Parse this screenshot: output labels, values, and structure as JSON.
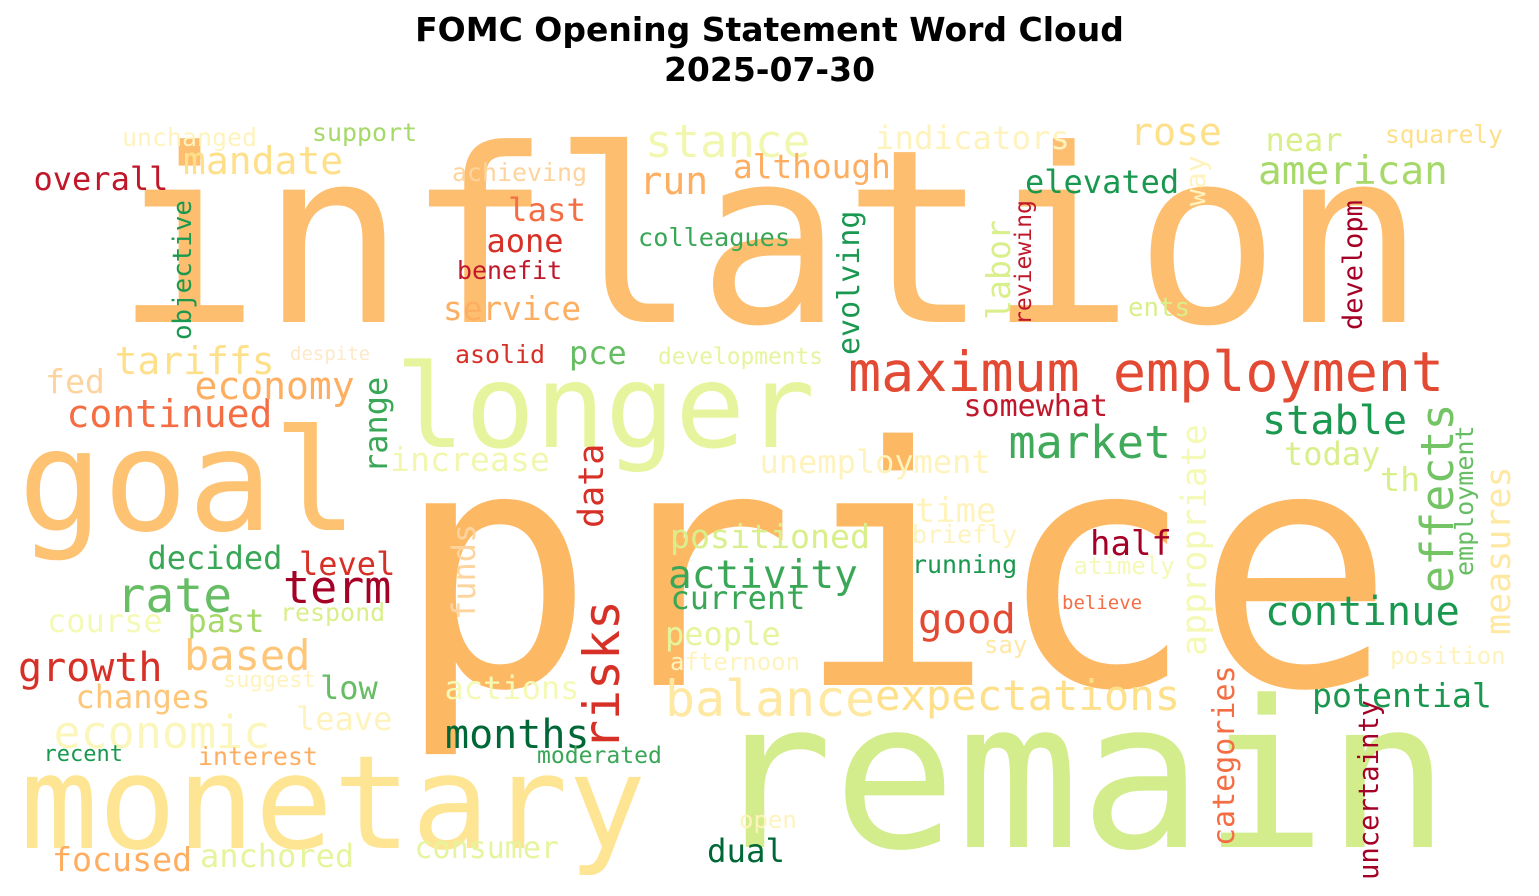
{
  "title": {
    "line1": "FOMC Opening Statement Word Cloud",
    "line2": "2025-07-30"
  },
  "palette": {
    "dark_red": "#a50026",
    "red": "#d73027",
    "orange_red": "#f46d43",
    "orange": "#fdae61",
    "light_orange": "#fee08b",
    "pale_yellow": "#ffffbf",
    "light_lime": "#d9ef8b",
    "light_green": "#a6d96a",
    "green": "#66bd63",
    "medium_green": "#1a9850",
    "dark_green": "#006837"
  },
  "words": [
    {
      "text": "inflation",
      "color": "#fdbf6f",
      "vertical": false
    },
    {
      "text": "price",
      "color": "#fdb863",
      "vertical": false
    },
    {
      "text": "remain",
      "color": "#d3ec8c",
      "vertical": false
    },
    {
      "text": "longer",
      "color": "#e6f59d",
      "vertical": false
    },
    {
      "text": "goal",
      "color": "#fdc272",
      "vertical": false
    },
    {
      "text": "monetary",
      "color": "#fee594",
      "vertical": false
    },
    {
      "text": "maximum employment",
      "color": "#e34a33",
      "vertical": false
    },
    {
      "text": "stance",
      "color": "#f2f7b0",
      "vertical": false
    },
    {
      "text": "expectations",
      "color": "#fee08b",
      "vertical": false
    },
    {
      "text": "balance",
      "color": "#fee8a2",
      "vertical": false
    },
    {
      "text": "economic",
      "color": "#fbf7bc",
      "vertical": false
    },
    {
      "text": "rate",
      "color": "#66bd63",
      "vertical": false
    },
    {
      "text": "term",
      "color": "#a50026",
      "vertical": false
    },
    {
      "text": "market",
      "color": "#3faa59",
      "vertical": false
    },
    {
      "text": "activity",
      "color": "#3aa757",
      "vertical": false
    },
    {
      "text": "risks",
      "color": "#d73027",
      "vertical": true
    },
    {
      "text": "effects",
      "color": "#74c364",
      "vertical": true
    },
    {
      "text": "appropriate",
      "color": "#f5f9b6",
      "vertical": true
    },
    {
      "text": "continue",
      "color": "#1a9850",
      "vertical": false
    },
    {
      "text": "stable",
      "color": "#1a9850",
      "vertical": false
    },
    {
      "text": "continued",
      "color": "#f46d43",
      "vertical": false
    },
    {
      "text": "tariffs",
      "color": "#fee08b",
      "vertical": false
    },
    {
      "text": "economy",
      "color": "#fdae61",
      "vertical": false
    },
    {
      "text": "growth",
      "color": "#d73027",
      "vertical": false
    },
    {
      "text": "based",
      "color": "#fdc679",
      "vertical": false
    },
    {
      "text": "months",
      "color": "#006837",
      "vertical": false
    },
    {
      "text": "good",
      "color": "#e34a33",
      "vertical": false
    },
    {
      "text": "mandate",
      "color": "#fee08b",
      "vertical": false
    },
    {
      "text": "american",
      "color": "#a6d96a",
      "vertical": false
    },
    {
      "text": "although",
      "color": "#fdae61",
      "vertical": false
    },
    {
      "text": "rose",
      "color": "#fee08b",
      "vertical": false
    },
    {
      "text": "run",
      "color": "#fdae61",
      "vertical": false
    },
    {
      "text": "indicators",
      "color": "#fff3bd",
      "vertical": false
    },
    {
      "text": "overall",
      "color": "#c0172a",
      "vertical": false
    },
    {
      "text": "last",
      "color": "#f46d43",
      "vertical": false
    },
    {
      "text": "aone",
      "color": "#d73027",
      "vertical": false
    },
    {
      "text": "service",
      "color": "#fdae61",
      "vertical": false
    },
    {
      "text": "elevated",
      "color": "#1a9850",
      "vertical": false
    },
    {
      "text": "near",
      "color": "#d9ef8b",
      "vertical": false
    },
    {
      "text": "squarely",
      "color": "#fee08b",
      "vertical": false
    },
    {
      "text": "support",
      "color": "#a6d96a",
      "vertical": false
    },
    {
      "text": "unchanged",
      "color": "#fff3bd",
      "vertical": false
    },
    {
      "text": "achieving",
      "color": "#fdd49e",
      "vertical": false
    },
    {
      "text": "benefit",
      "color": "#c0172a",
      "vertical": false
    },
    {
      "text": "colleagues",
      "color": "#3aa757",
      "vertical": false
    },
    {
      "text": "objective",
      "color": "#1a9850",
      "vertical": true
    },
    {
      "text": "evolving",
      "color": "#1a9850",
      "vertical": true
    },
    {
      "text": "labor",
      "color": "#d9ef8b",
      "vertical": true
    },
    {
      "text": "reviewing",
      "color": "#c0172a",
      "vertical": true
    },
    {
      "text": "way",
      "color": "#fff3bd",
      "vertical": true
    },
    {
      "text": "developm",
      "color": "#a50026",
      "vertical": true
    },
    {
      "text": "ents",
      "color": "#d9ef8b",
      "vertical": false
    },
    {
      "text": "despite",
      "color": "#fee8c8",
      "vertical": false
    },
    {
      "text": "asolid",
      "color": "#d73027",
      "vertical": false
    },
    {
      "text": "pce",
      "color": "#66bd63",
      "vertical": false
    },
    {
      "text": "developments",
      "color": "#e6f59d",
      "vertical": false
    },
    {
      "text": "fed",
      "color": "#fdd49e",
      "vertical": false
    },
    {
      "text": "range",
      "color": "#3aa757",
      "vertical": true
    },
    {
      "text": "somewhat",
      "color": "#c0172a",
      "vertical": false
    },
    {
      "text": "increase",
      "color": "#f2f7b0",
      "vertical": false
    },
    {
      "text": "unemployment",
      "color": "#fff3bd",
      "vertical": false
    },
    {
      "text": "today",
      "color": "#d9ef8b",
      "vertical": false
    },
    {
      "text": "th",
      "color": "#d9ef8b",
      "vertical": false
    },
    {
      "text": "measures",
      "color": "#fee8a2",
      "vertical": true
    },
    {
      "text": "employment",
      "color": "#66bd63",
      "vertical": true
    },
    {
      "text": "data",
      "color": "#d73027",
      "vertical": true
    },
    {
      "text": "time",
      "color": "#fff3bd",
      "vertical": false
    },
    {
      "text": "positioned",
      "color": "#d9ef8b",
      "vertical": false
    },
    {
      "text": "briefly",
      "color": "#fff3bd",
      "vertical": false
    },
    {
      "text": "half",
      "color": "#a50026",
      "vertical": false
    },
    {
      "text": "decided",
      "color": "#3aa757",
      "vertical": false
    },
    {
      "text": "level",
      "color": "#d73027",
      "vertical": false
    },
    {
      "text": "funds",
      "color": "#fdd49e",
      "vertical": true
    },
    {
      "text": "running",
      "color": "#1a9850",
      "vertical": false
    },
    {
      "text": "atimely",
      "color": "#f5f9b6",
      "vertical": false
    },
    {
      "text": "current",
      "color": "#3aa757",
      "vertical": false
    },
    {
      "text": "course",
      "color": "#f5f9b6",
      "vertical": false
    },
    {
      "text": "past",
      "color": "#a6d96a",
      "vertical": false
    },
    {
      "text": "respond",
      "color": "#d9ef8b",
      "vertical": false
    },
    {
      "text": "believe",
      "color": "#f46d43",
      "vertical": false
    },
    {
      "text": "people",
      "color": "#e6f59d",
      "vertical": false
    },
    {
      "text": "say",
      "color": "#fee8a2",
      "vertical": false
    },
    {
      "text": "afternoon",
      "color": "#fff3bd",
      "vertical": false
    },
    {
      "text": "position",
      "color": "#fff3bd",
      "vertical": false
    },
    {
      "text": "changes",
      "color": "#fdc679",
      "vertical": false
    },
    {
      "text": "suggest",
      "color": "#fff3bd",
      "vertical": false
    },
    {
      "text": "low",
      "color": "#66bd63",
      "vertical": false
    },
    {
      "text": "actions",
      "color": "#f5f9b6",
      "vertical": false
    },
    {
      "text": "categories",
      "color": "#f46d43",
      "vertical": true
    },
    {
      "text": "potential",
      "color": "#1a9850",
      "vertical": false
    },
    {
      "text": "leave",
      "color": "#fff3bd",
      "vertical": false
    },
    {
      "text": "recent",
      "color": "#1a9850",
      "vertical": false
    },
    {
      "text": "interest",
      "color": "#fdae61",
      "vertical": false
    },
    {
      "text": "moderated",
      "color": "#3aa757",
      "vertical": false
    },
    {
      "text": "uncertainty",
      "color": "#a50026",
      "vertical": true
    },
    {
      "text": "open",
      "color": "#fff3bd",
      "vertical": false
    },
    {
      "text": "focused",
      "color": "#fdae61",
      "vertical": false
    },
    {
      "text": "anchored",
      "color": "#e6f59d",
      "vertical": false
    },
    {
      "text": "consumer",
      "color": "#e6f59d",
      "vertical": false
    },
    {
      "text": "dual",
      "color": "#006837",
      "vertical": false
    }
  ]
}
